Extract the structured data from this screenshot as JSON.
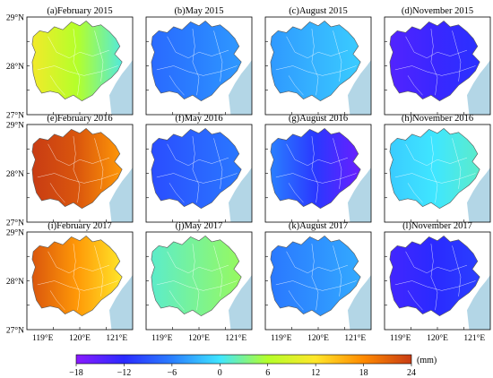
{
  "figure": {
    "panels": [
      {
        "label": "(a)February 2015",
        "value": 6,
        "gradient": "west-to-east"
      },
      {
        "label": "(b)May 2015",
        "value": -6,
        "gradient": "uniform"
      },
      {
        "label": "(c)August 2015",
        "value": -3,
        "gradient": "uniform"
      },
      {
        "label": "(d)November 2015",
        "value": -13,
        "gradient": "uniform"
      },
      {
        "label": "(e)February 2016",
        "value": 22,
        "gradient": "west-to-east"
      },
      {
        "label": "(f)May 2016",
        "value": -8,
        "gradient": "uniform"
      },
      {
        "label": "(g)August 2016",
        "value": -11,
        "gradient": "west-to-east"
      },
      {
        "label": "(h)November 2016",
        "value": 0,
        "gradient": "uniform"
      },
      {
        "label": "(i)February 2017",
        "value": 17,
        "gradient": "west-to-east"
      },
      {
        "label": "(j)May 2017",
        "value": 3,
        "gradient": "uniform"
      },
      {
        "label": "(k)August 2017",
        "value": -5,
        "gradient": "uniform"
      },
      {
        "label": "(l)November 2017",
        "value": -12,
        "gradient": "uniform"
      }
    ],
    "lat_ticks": [
      "29°N",
      "28°N",
      "27°N"
    ],
    "lon_ticks": [
      "119°E",
      "120°E",
      "121°E"
    ],
    "colorbar": {
      "ticks": [
        "-18",
        "-12",
        "-6",
        "0",
        "6",
        "12",
        "18",
        "24"
      ],
      "unit": "(mm)",
      "min": -18,
      "max": 24,
      "stops": [
        "#8a1aff",
        "#2a2aff",
        "#2a7fff",
        "#3fe6ff",
        "#b4ff2a",
        "#ffe62a",
        "#ff8a00",
        "#c83c14"
      ]
    },
    "colors": {
      "sea": "#b3d6e6",
      "frame": "#000000",
      "boundary": "#ffffff"
    }
  }
}
